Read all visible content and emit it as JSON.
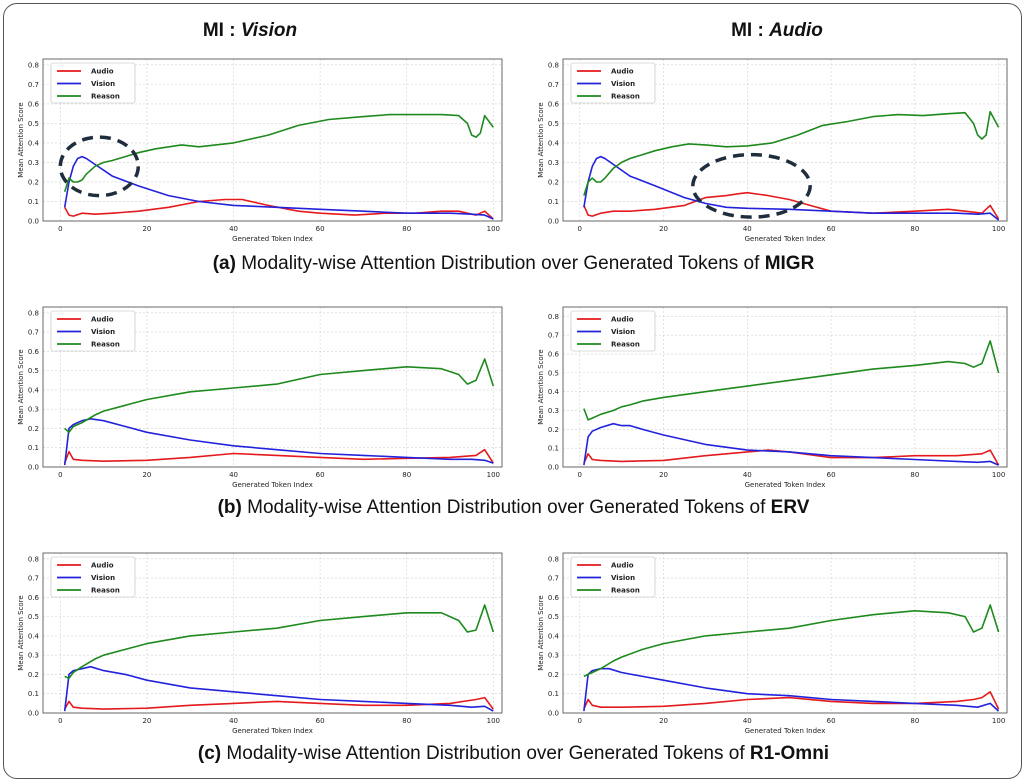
{
  "headers": {
    "left_prefix": "MI : ",
    "left_italic": "Vision",
    "right_prefix": "MI : ",
    "right_italic": "Audio"
  },
  "captions": [
    {
      "label": "(a)",
      "text": " Modality-wise Attention Distribution over Generated Tokens of ",
      "model": "MIGR"
    },
    {
      "label": "(b)",
      "text": " Modality-wise Attention Distribution over Generated Tokens of ",
      "model": "ERV"
    },
    {
      "label": "(c)",
      "text": " Modality-wise Attention Distribution over Generated Tokens of ",
      "model": "R1-Omni"
    }
  ],
  "colors": {
    "audio": "#e41a1c",
    "vision": "#2222dd",
    "reason": "#1e8a1e",
    "grid": "#d0d0d0",
    "ellipse": "#1f2d3d"
  },
  "chart_data": [
    {
      "type": "line",
      "id": "a-vision",
      "title": "",
      "xlabel": "Generated Token Index",
      "ylabel": "Mean Attention Score",
      "xlim": [
        -4,
        102
      ],
      "ylim": [
        0,
        0.83
      ],
      "xticks": [
        "0",
        "20",
        "40",
        "60",
        "80",
        "100"
      ],
      "yticks": [
        "0.0",
        "0.1",
        "0.2",
        "0.3",
        "0.4",
        "0.5",
        "0.6",
        "0.7",
        "0.8"
      ],
      "legend": [
        "Audio",
        "Vision",
        "Reason"
      ],
      "legend_position": "top-left",
      "grid": true,
      "highlight": {
        "cx": 9,
        "cy": 0.28,
        "rx": 9,
        "ry": 0.15
      },
      "series": [
        {
          "name": "Audio",
          "x": [
            1,
            2,
            3,
            5,
            8,
            12,
            18,
            25,
            32,
            38,
            42,
            48,
            55,
            60,
            68,
            75,
            82,
            88,
            92,
            96,
            98,
            100
          ],
          "values": [
            0.07,
            0.03,
            0.025,
            0.04,
            0.035,
            0.04,
            0.05,
            0.07,
            0.1,
            0.11,
            0.11,
            0.08,
            0.05,
            0.04,
            0.03,
            0.04,
            0.04,
            0.05,
            0.05,
            0.03,
            0.05,
            0.01
          ]
        },
        {
          "name": "Vision",
          "x": [
            1,
            2,
            3,
            4,
            5,
            6,
            8,
            12,
            18,
            25,
            32,
            40,
            50,
            60,
            70,
            80,
            90,
            95,
            98,
            100
          ],
          "values": [
            0.07,
            0.2,
            0.28,
            0.32,
            0.33,
            0.32,
            0.29,
            0.23,
            0.18,
            0.13,
            0.1,
            0.08,
            0.07,
            0.06,
            0.05,
            0.04,
            0.04,
            0.035,
            0.03,
            0.01
          ]
        },
        {
          "name": "Reason",
          "x": [
            1,
            2,
            3,
            4,
            5,
            6,
            8,
            10,
            12,
            15,
            18,
            22,
            28,
            32,
            40,
            48,
            55,
            62,
            70,
            76,
            82,
            88,
            92,
            94,
            95,
            96,
            97,
            98,
            100
          ],
          "values": [
            0.15,
            0.22,
            0.2,
            0.2,
            0.21,
            0.24,
            0.28,
            0.3,
            0.31,
            0.33,
            0.35,
            0.37,
            0.39,
            0.38,
            0.4,
            0.44,
            0.49,
            0.52,
            0.535,
            0.545,
            0.545,
            0.545,
            0.54,
            0.5,
            0.44,
            0.43,
            0.45,
            0.54,
            0.48
          ]
        }
      ]
    },
    {
      "type": "line",
      "id": "a-audio",
      "title": "",
      "xlabel": "Generated Token Index",
      "ylabel": "Mean Attention Score",
      "xlim": [
        -4,
        102
      ],
      "ylim": [
        0,
        0.83
      ],
      "xticks": [
        "0",
        "20",
        "40",
        "60",
        "80",
        "100"
      ],
      "yticks": [
        "0.0",
        "0.1",
        "0.2",
        "0.3",
        "0.4",
        "0.5",
        "0.6",
        "0.7",
        "0.8"
      ],
      "legend": [
        "Audio",
        "Vision",
        "Reason"
      ],
      "legend_position": "top-left",
      "grid": true,
      "highlight": {
        "cx": 41,
        "cy": 0.18,
        "rx": 14,
        "ry": 0.16
      },
      "series": [
        {
          "name": "Audio",
          "x": [
            1,
            2,
            3,
            5,
            8,
            12,
            18,
            25,
            30,
            35,
            38,
            40,
            45,
            50,
            55,
            60,
            70,
            80,
            88,
            92,
            96,
            98,
            100
          ],
          "values": [
            0.08,
            0.03,
            0.025,
            0.04,
            0.05,
            0.05,
            0.06,
            0.08,
            0.12,
            0.13,
            0.14,
            0.145,
            0.13,
            0.11,
            0.08,
            0.05,
            0.04,
            0.05,
            0.06,
            0.05,
            0.04,
            0.08,
            0.01
          ]
        },
        {
          "name": "Vision",
          "x": [
            1,
            2,
            3,
            4,
            5,
            6,
            8,
            12,
            18,
            25,
            30,
            35,
            40,
            50,
            60,
            70,
            80,
            90,
            95,
            98,
            100
          ],
          "values": [
            0.07,
            0.2,
            0.28,
            0.32,
            0.33,
            0.32,
            0.29,
            0.23,
            0.18,
            0.12,
            0.09,
            0.07,
            0.065,
            0.06,
            0.05,
            0.04,
            0.04,
            0.04,
            0.035,
            0.04,
            0.005
          ]
        },
        {
          "name": "Reason",
          "x": [
            1,
            2,
            3,
            4,
            5,
            6,
            8,
            10,
            12,
            15,
            18,
            22,
            26,
            30,
            35,
            40,
            46,
            52,
            58,
            64,
            70,
            76,
            82,
            88,
            92,
            94,
            95,
            96,
            97,
            98,
            100
          ],
          "values": [
            0.13,
            0.2,
            0.22,
            0.2,
            0.2,
            0.22,
            0.27,
            0.3,
            0.32,
            0.34,
            0.36,
            0.38,
            0.395,
            0.39,
            0.38,
            0.385,
            0.4,
            0.44,
            0.49,
            0.51,
            0.535,
            0.545,
            0.54,
            0.55,
            0.555,
            0.5,
            0.44,
            0.42,
            0.44,
            0.56,
            0.48
          ]
        }
      ]
    },
    {
      "type": "line",
      "id": "b-left",
      "title": "",
      "xlabel": "Generated Token Index",
      "ylabel": "Mean Attention Score",
      "xlim": [
        -4,
        102
      ],
      "ylim": [
        0,
        0.83
      ],
      "xticks": [
        "0",
        "20",
        "40",
        "60",
        "80",
        "100"
      ],
      "yticks": [
        "0.0",
        "0.1",
        "0.2",
        "0.3",
        "0.4",
        "0.5",
        "0.6",
        "0.7",
        "0.8"
      ],
      "legend": [
        "Audio",
        "Vision",
        "Reason"
      ],
      "legend_position": "top-left",
      "grid": true,
      "series": [
        {
          "name": "Audio",
          "x": [
            1,
            2,
            3,
            5,
            10,
            20,
            30,
            40,
            50,
            60,
            70,
            80,
            90,
            96,
            98,
            100
          ],
          "values": [
            0.02,
            0.08,
            0.04,
            0.035,
            0.03,
            0.035,
            0.05,
            0.07,
            0.06,
            0.05,
            0.04,
            0.045,
            0.05,
            0.06,
            0.09,
            0.02
          ]
        },
        {
          "name": "Vision",
          "x": [
            1,
            2,
            3,
            5,
            7,
            10,
            15,
            20,
            30,
            40,
            50,
            60,
            70,
            80,
            90,
            95,
            98,
            100
          ],
          "values": [
            0.01,
            0.2,
            0.22,
            0.24,
            0.25,
            0.24,
            0.21,
            0.18,
            0.14,
            0.11,
            0.09,
            0.07,
            0.06,
            0.05,
            0.04,
            0.04,
            0.035,
            0.02
          ]
        },
        {
          "name": "Reason",
          "x": [
            1,
            2,
            3,
            5,
            8,
            10,
            15,
            20,
            30,
            40,
            50,
            60,
            70,
            80,
            88,
            92,
            94,
            96,
            98,
            100
          ],
          "values": [
            0.2,
            0.18,
            0.21,
            0.23,
            0.27,
            0.29,
            0.32,
            0.35,
            0.39,
            0.41,
            0.43,
            0.48,
            0.5,
            0.52,
            0.51,
            0.48,
            0.43,
            0.45,
            0.56,
            0.42
          ]
        }
      ]
    },
    {
      "type": "line",
      "id": "b-right",
      "title": "",
      "xlabel": "Generated Token Index",
      "ylabel": "Mean Attention Score",
      "xlim": [
        -4,
        102
      ],
      "ylim": [
        0,
        0.85
      ],
      "xticks": [
        "0",
        "20",
        "40",
        "60",
        "80",
        "100"
      ],
      "yticks": [
        "0.0",
        "0.1",
        "0.2",
        "0.3",
        "0.4",
        "0.5",
        "0.6",
        "0.7",
        "0.8"
      ],
      "legend": [
        "Audio",
        "Vision",
        "Reason"
      ],
      "legend_position": "top-left",
      "grid": true,
      "series": [
        {
          "name": "Audio",
          "x": [
            1,
            2,
            3,
            5,
            10,
            20,
            30,
            40,
            45,
            50,
            60,
            70,
            80,
            90,
            96,
            98,
            100
          ],
          "values": [
            0.02,
            0.07,
            0.04,
            0.035,
            0.03,
            0.035,
            0.06,
            0.08,
            0.09,
            0.08,
            0.05,
            0.05,
            0.06,
            0.06,
            0.07,
            0.09,
            0.01
          ]
        },
        {
          "name": "Vision",
          "x": [
            1,
            2,
            3,
            5,
            8,
            10,
            12,
            15,
            20,
            30,
            40,
            50,
            60,
            70,
            80,
            90,
            95,
            98,
            100
          ],
          "values": [
            0.01,
            0.16,
            0.19,
            0.21,
            0.23,
            0.22,
            0.22,
            0.2,
            0.17,
            0.12,
            0.09,
            0.08,
            0.06,
            0.05,
            0.04,
            0.03,
            0.025,
            0.03,
            0.01
          ]
        },
        {
          "name": "Reason",
          "x": [
            1,
            2,
            3,
            5,
            8,
            10,
            12,
            15,
            20,
            30,
            40,
            50,
            60,
            70,
            80,
            88,
            92,
            94,
            96,
            98,
            100
          ],
          "values": [
            0.31,
            0.25,
            0.26,
            0.28,
            0.3,
            0.32,
            0.33,
            0.35,
            0.37,
            0.4,
            0.43,
            0.46,
            0.49,
            0.52,
            0.54,
            0.56,
            0.55,
            0.53,
            0.55,
            0.67,
            0.5
          ]
        }
      ]
    },
    {
      "type": "line",
      "id": "c-left",
      "title": "",
      "xlabel": "Generated Token Index",
      "ylabel": "Mean Attention Score",
      "xlim": [
        -4,
        102
      ],
      "ylim": [
        0,
        0.83
      ],
      "xticks": [
        "0",
        "20",
        "40",
        "60",
        "80",
        "100"
      ],
      "yticks": [
        "0.0",
        "0.1",
        "0.2",
        "0.3",
        "0.4",
        "0.5",
        "0.6",
        "0.7",
        "0.8"
      ],
      "legend": [
        "Audio",
        "Vision",
        "Reason"
      ],
      "legend_position": "top-left",
      "grid": true,
      "series": [
        {
          "name": "Audio",
          "x": [
            1,
            2,
            3,
            5,
            10,
            20,
            30,
            40,
            50,
            60,
            70,
            80,
            90,
            96,
            98,
            100
          ],
          "values": [
            0.02,
            0.06,
            0.03,
            0.025,
            0.02,
            0.025,
            0.04,
            0.05,
            0.06,
            0.05,
            0.04,
            0.04,
            0.05,
            0.07,
            0.08,
            0.02
          ]
        },
        {
          "name": "Vision",
          "x": [
            1,
            2,
            3,
            5,
            7,
            10,
            15,
            20,
            30,
            40,
            50,
            60,
            70,
            80,
            90,
            95,
            98,
            100
          ],
          "values": [
            0.01,
            0.2,
            0.22,
            0.23,
            0.24,
            0.22,
            0.2,
            0.17,
            0.13,
            0.11,
            0.09,
            0.07,
            0.06,
            0.05,
            0.04,
            0.03,
            0.035,
            0.01
          ]
        },
        {
          "name": "Reason",
          "x": [
            1,
            2,
            3,
            5,
            8,
            10,
            15,
            20,
            30,
            40,
            50,
            60,
            70,
            80,
            88,
            92,
            94,
            96,
            98,
            100
          ],
          "values": [
            0.19,
            0.18,
            0.21,
            0.24,
            0.28,
            0.3,
            0.33,
            0.36,
            0.4,
            0.42,
            0.44,
            0.48,
            0.5,
            0.52,
            0.52,
            0.48,
            0.42,
            0.43,
            0.56,
            0.42
          ]
        }
      ]
    },
    {
      "type": "line",
      "id": "c-right",
      "title": "",
      "xlabel": "Generated Token Index",
      "ylabel": "Mean Attention Score",
      "xlim": [
        -4,
        102
      ],
      "ylim": [
        0,
        0.83
      ],
      "xticks": [
        "0",
        "20",
        "40",
        "60",
        "80",
        "100"
      ],
      "yticks": [
        "0.0",
        "0.1",
        "0.2",
        "0.3",
        "0.4",
        "0.5",
        "0.6",
        "0.7",
        "0.8"
      ],
      "legend": [
        "Audio",
        "Vision",
        "Reason"
      ],
      "legend_position": "top-left",
      "grid": true,
      "series": [
        {
          "name": "Audio",
          "x": [
            1,
            2,
            3,
            5,
            10,
            20,
            30,
            40,
            50,
            60,
            70,
            80,
            90,
            94,
            96,
            98,
            100
          ],
          "values": [
            0.02,
            0.07,
            0.04,
            0.03,
            0.03,
            0.035,
            0.05,
            0.07,
            0.08,
            0.06,
            0.05,
            0.05,
            0.06,
            0.07,
            0.08,
            0.11,
            0.02
          ]
        },
        {
          "name": "Vision",
          "x": [
            1,
            2,
            3,
            5,
            7,
            10,
            15,
            20,
            30,
            40,
            50,
            60,
            70,
            80,
            90,
            95,
            98,
            100
          ],
          "values": [
            0.01,
            0.2,
            0.22,
            0.23,
            0.23,
            0.21,
            0.19,
            0.17,
            0.13,
            0.1,
            0.09,
            0.07,
            0.06,
            0.05,
            0.04,
            0.03,
            0.05,
            0.01
          ]
        },
        {
          "name": "Reason",
          "x": [
            1,
            2,
            3,
            5,
            8,
            10,
            15,
            20,
            30,
            40,
            50,
            60,
            70,
            80,
            88,
            92,
            94,
            96,
            98,
            100
          ],
          "values": [
            0.19,
            0.2,
            0.21,
            0.23,
            0.27,
            0.29,
            0.33,
            0.36,
            0.4,
            0.42,
            0.44,
            0.48,
            0.51,
            0.53,
            0.52,
            0.5,
            0.42,
            0.44,
            0.56,
            0.42
          ]
        }
      ]
    }
  ]
}
